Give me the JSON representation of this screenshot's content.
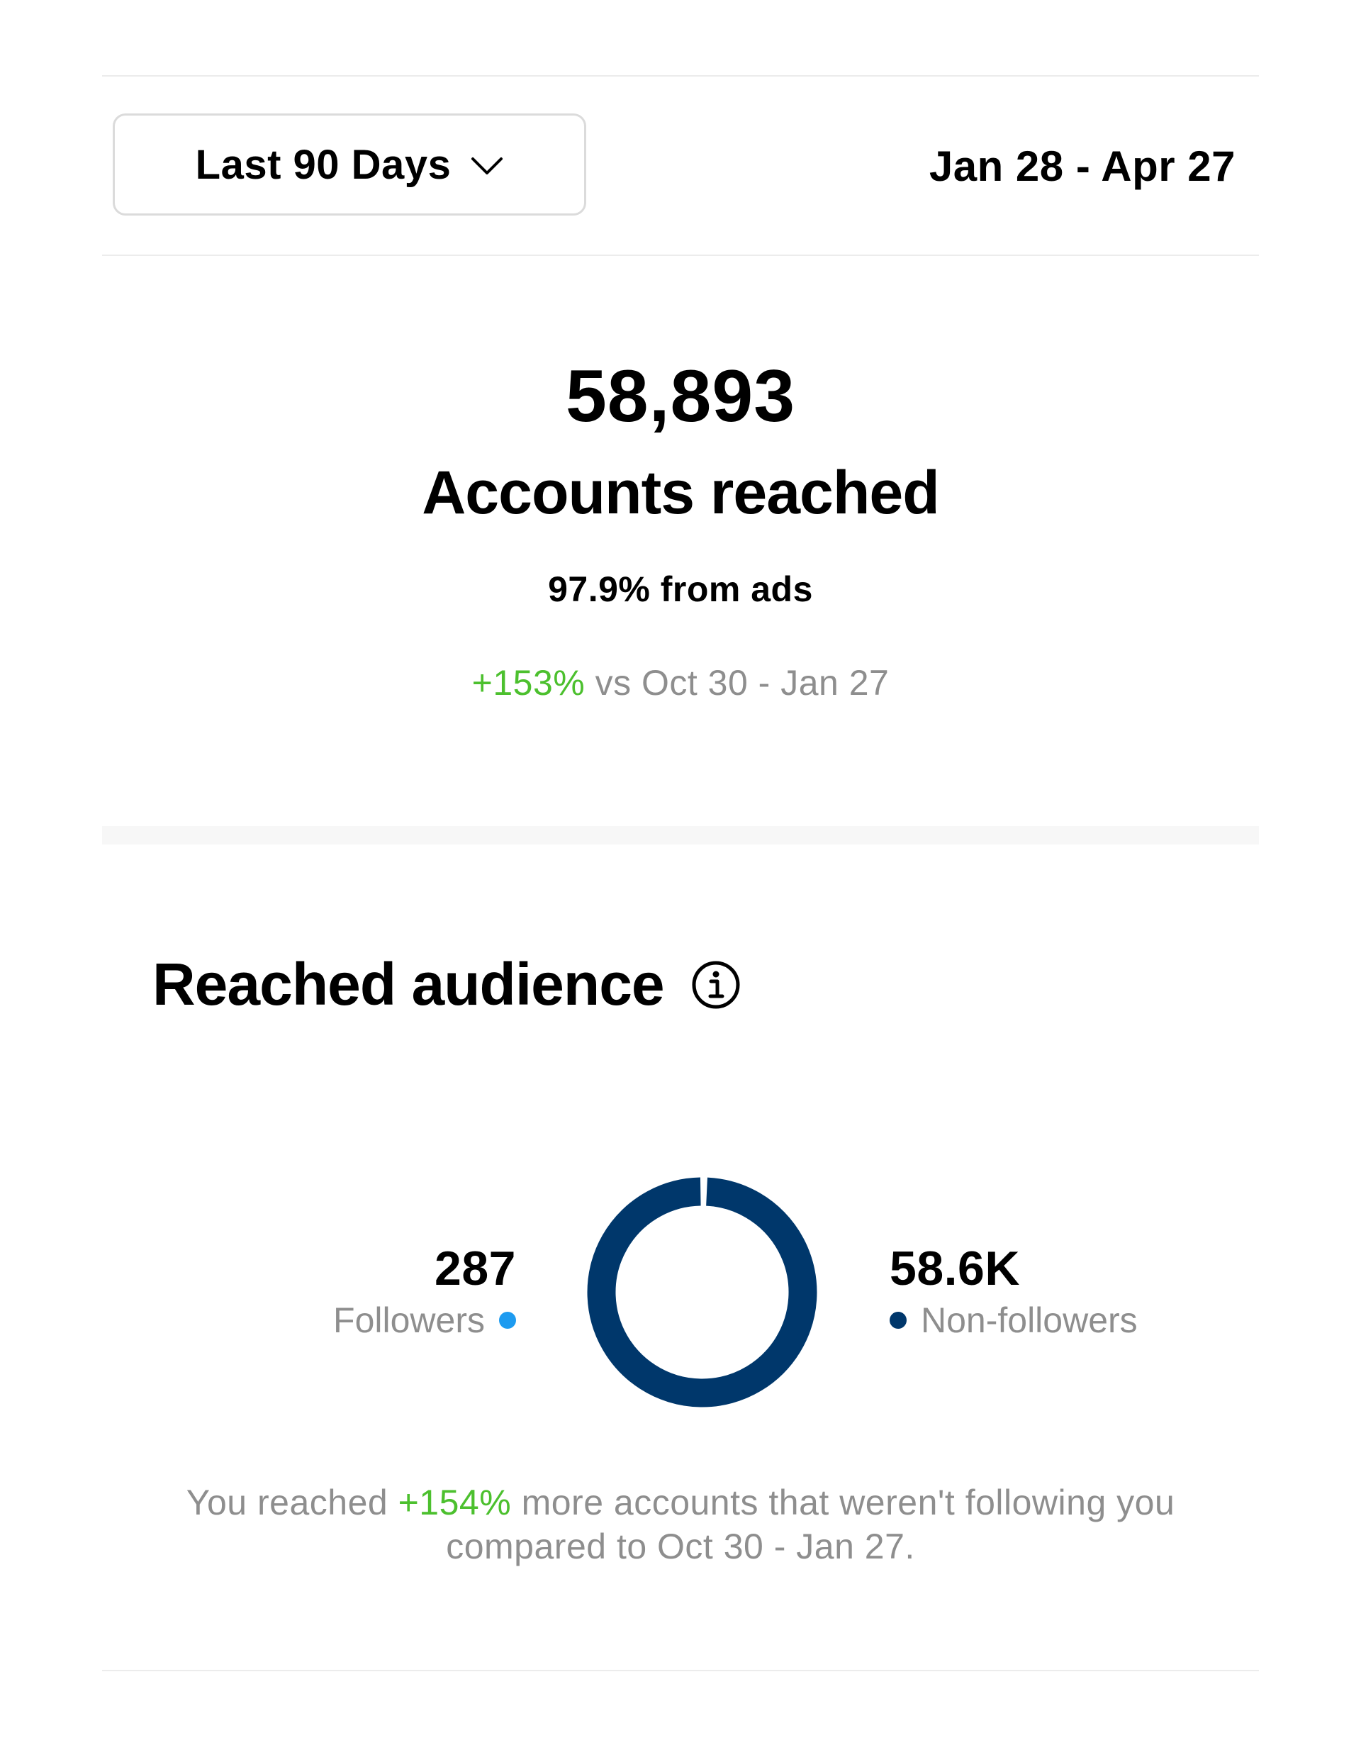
{
  "range_selector": {
    "label": "Last 90 Days",
    "icon": "chevron-down-icon"
  },
  "date_range": "Jan 28 - Apr 27",
  "overview": {
    "value": "58,893",
    "label": "Accounts reached",
    "ads_share": "97.9% from ads",
    "change": "+153%",
    "compare_text": " vs Oct 30 - Jan 27"
  },
  "audience": {
    "title": "Reached audience",
    "info_icon": "info-icon",
    "followers": {
      "value": "287",
      "label": "Followers",
      "color": "#1d9bf0"
    },
    "non_followers": {
      "value": "58.6K",
      "label": "Non-followers",
      "color": "#00376b"
    },
    "footnote": {
      "prefix": "You reached ",
      "change": "+154%",
      "suffix": " more accounts that weren't following you",
      "line2": "compared to Oct 30 - Jan 27."
    }
  },
  "chart_data": {
    "type": "pie",
    "categories": [
      "Followers",
      "Non-followers"
    ],
    "values": [
      287,
      58600
    ],
    "colors": [
      "#1d9bf0",
      "#00376b"
    ]
  },
  "colors": {
    "positive": "#4cc02e",
    "muted_text": "#8e8e8e",
    "divider": "#ececec"
  }
}
